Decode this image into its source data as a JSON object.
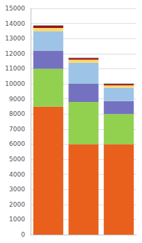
{
  "chart_data": {
    "type": "bar",
    "stacked": true,
    "categories": [
      null,
      null,
      null
    ],
    "series": [
      {
        "color": "#E8601C",
        "values": [
          8500,
          6000,
          6000
        ]
      },
      {
        "color": "#92D050",
        "values": [
          2500,
          2800,
          2000
        ]
      },
      {
        "color": "#7472C0",
        "values": [
          1200,
          1200,
          850
        ]
      },
      {
        "color": "#9DC3E6",
        "values": [
          1300,
          1400,
          900
        ]
      },
      {
        "color": "#FFD966",
        "values": [
          200,
          200,
          150
        ]
      },
      {
        "color": "#C00000",
        "values": [
          100,
          80,
          60
        ]
      },
      {
        "color": "#3F3F3F",
        "values": [
          70,
          50,
          50
        ]
      }
    ],
    "ylim": [
      0,
      15000
    ],
    "yticks": [
      0,
      1000,
      2000,
      3000,
      4000,
      5000,
      6000,
      7000,
      8000,
      9000,
      10000,
      11000,
      12000,
      13000,
      14000,
      15000
    ],
    "grid": true,
    "tick_labels": "y"
  }
}
